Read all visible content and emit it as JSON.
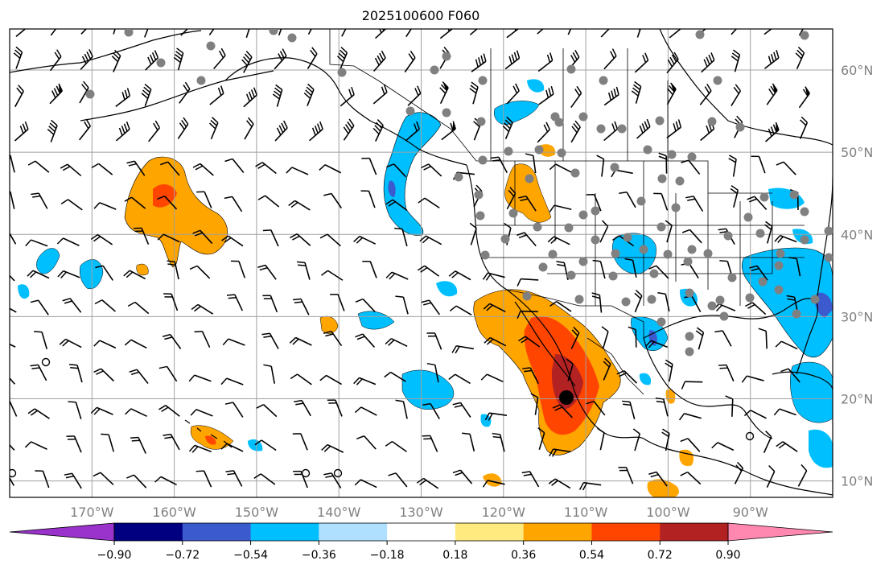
{
  "title": "2025100600 F060",
  "map": {
    "lat_labels": [
      "60°N",
      "50°N",
      "40°N",
      "30°N",
      "20°N",
      "10°N"
    ],
    "lon_labels": [
      "170°W",
      "160°W",
      "150°W",
      "140°W",
      "130°W",
      "120°W",
      "110°W",
      "100°W",
      "90°W"
    ],
    "lat_values": [
      60,
      50,
      40,
      30,
      20,
      10
    ],
    "lon_values": [
      -170,
      -160,
      -150,
      -140,
      -130,
      -120,
      -110,
      -100,
      -90
    ],
    "lon_range": [
      -180,
      -80
    ],
    "lat_range": [
      8,
      65
    ],
    "grid": true,
    "coast_color": "#000000",
    "station_color": "#808080"
  },
  "colorbar": {
    "tick_labels": [
      "−0.90",
      "−0.72",
      "−0.54",
      "−0.36",
      "−0.18",
      "0.18",
      "0.36",
      "0.54",
      "0.72",
      "0.90"
    ],
    "colors": [
      "#9933cc",
      "#000080",
      "#3a5acd",
      "#00bfff",
      "#b0e0ff",
      "#ffffff",
      "#ffea80",
      "#ffa500",
      "#ff4500",
      "#b22222",
      "#ff88b0"
    ]
  },
  "contour_regions": [
    {
      "name": "positive-region-north-pacific",
      "color": "#ffa500",
      "lon": -157,
      "lat": 42
    },
    {
      "name": "positive-region-mexico",
      "color": "#ff4500",
      "lon": -112,
      "lat": 22
    },
    {
      "name": "negative-region-alaska-coast",
      "color": "#00bfff",
      "lon": -135,
      "lat": 47
    },
    {
      "name": "negative-region-gulf",
      "color": "#00bfff",
      "lon": -85,
      "lat": 33
    }
  ]
}
